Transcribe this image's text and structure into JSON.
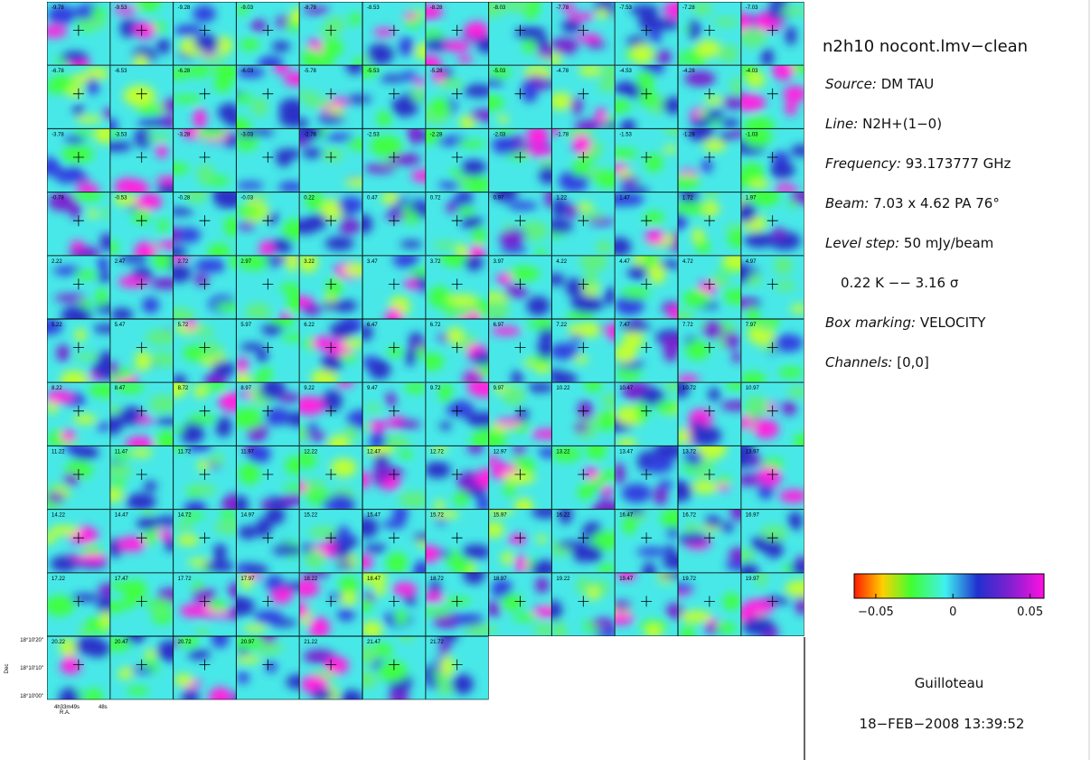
{
  "plot": {
    "panels": [
      "-9.78",
      "-9.53",
      "-9.28",
      "-9.03",
      "-8.78",
      "-8.53",
      "-8.28",
      "-8.03",
      "-7.78",
      "-7.53",
      "-7.28",
      "-7.03",
      "-6.78",
      "-6.53",
      "-6.28",
      "-6.03",
      "-5.78",
      "-5.53",
      "-5.28",
      "-5.03",
      "-4.78",
      "-4.53",
      "-4.28",
      "-4.03",
      "-3.78",
      "-3.53",
      "-3.28",
      "-3.03",
      "-2.78",
      "-2.53",
      "-2.28",
      "-2.03",
      "-1.78",
      "-1.53",
      "-1.28",
      "-1.03",
      "-0.78",
      "-0.53",
      "-0.28",
      "-0.03",
      "0.22",
      "0.47",
      "0.72",
      "0.97",
      "1.22",
      "1.47",
      "1.72",
      "1.97",
      "2.22",
      "2.47",
      "2.72",
      "2.97",
      "3.22",
      "3.47",
      "3.72",
      "3.97",
      "4.22",
      "4.47",
      "4.72",
      "4.97",
      "5.22",
      "5.47",
      "5.72",
      "5.97",
      "6.22",
      "6.47",
      "6.72",
      "6.97",
      "7.22",
      "7.47",
      "7.72",
      "7.97",
      "8.22",
      "8.47",
      "8.72",
      "8.97",
      "9.22",
      "9.47",
      "9.72",
      "9.97",
      "10.22",
      "10.47",
      "10.72",
      "10.97",
      "11.22",
      "11.47",
      "11.72",
      "11.97",
      "12.22",
      "12.47",
      "12.72",
      "12.97",
      "13.22",
      "13.47",
      "13.72",
      "13.97",
      "14.22",
      "14.47",
      "14.72",
      "14.97",
      "15.22",
      "15.47",
      "15.72",
      "15.97",
      "16.22",
      "16.47",
      "16.72",
      "16.97",
      "17.22",
      "17.47",
      "17.72",
      "17.97",
      "18.22",
      "18.47",
      "18.72",
      "18.97",
      "19.22",
      "19.47",
      "19.72",
      "19.97",
      "20.22",
      "20.47",
      "20.72",
      "20.97",
      "21.22",
      "21.47",
      "21.72"
    ],
    "dec_ticks": [
      "18°10'20\"",
      "18°10'10\"",
      "18°10'00\""
    ],
    "dec_label": "Dec",
    "ra_ticks": [
      "4h33m49s",
      "48s"
    ],
    "ra_label": "R.A."
  },
  "info": {
    "title": "n2h10 nocont.lmv−clean",
    "lines": [
      {
        "key": "Source:",
        "value": "DM TAU"
      },
      {
        "key": "Line:",
        "value": "N2H+(1−0)"
      },
      {
        "key": "Frequency:",
        "value": "93.173777 GHz"
      },
      {
        "key": "Beam:",
        "value": "7.03 x 4.62 PA 76°"
      },
      {
        "key": "Level step:",
        "value": "50 mJy/beam"
      },
      {
        "key": null,
        "value": "0.22 K   −−  3.16 σ"
      },
      {
        "key": "Box marking:",
        "value": "VELOCITY"
      },
      {
        "key": "Channels:",
        "value": "[0,0]"
      }
    ],
    "author": "Guilloteau",
    "date": "18−FEB−2008 13:39:52"
  },
  "colorbar": {
    "lim": [
      -0.064,
      0.059
    ],
    "ticks": [
      {
        "value": -0.05,
        "label": "−0.05"
      },
      0,
      0.05
    ]
  }
}
